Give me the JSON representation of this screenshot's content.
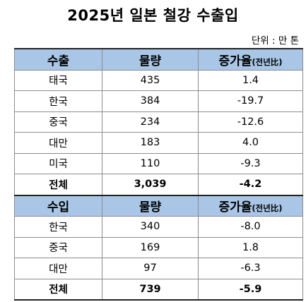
{
  "title": "2025년 일본 철강 수출입",
  "unit": "단위 : 만 톤",
  "export": {
    "header": {
      "label": "수출",
      "volume": "물량",
      "change": "증가율",
      "change_sub": "(전년比)"
    },
    "rows": [
      {
        "country": "태국",
        "volume": "435",
        "change": "1.4"
      },
      {
        "country": "한국",
        "volume": "384",
        "change": "-19.7"
      },
      {
        "country": "중국",
        "volume": "234",
        "change": "-12.6"
      },
      {
        "country": "대만",
        "volume": "183",
        "change": "4.0"
      },
      {
        "country": "미국",
        "volume": "110",
        "change": "-9.3"
      }
    ],
    "total": {
      "label": "전체",
      "volume": "3,039",
      "change": "-4.2"
    }
  },
  "import": {
    "header": {
      "label": "수입",
      "volume": "물량",
      "change": "증가율",
      "change_sub": "(전년比)"
    },
    "rows": [
      {
        "country": "한국",
        "volume": "340",
        "change": "-8.0"
      },
      {
        "country": "중국",
        "volume": "169",
        "change": "1.8"
      },
      {
        "country": "대만",
        "volume": "97",
        "change": "-6.3"
      }
    ],
    "total": {
      "label": "전체",
      "volume": "739",
      "change": "-5.9"
    }
  },
  "colors": {
    "header_bg": "#a9c6e6",
    "grid": "#8c8c8c"
  }
}
